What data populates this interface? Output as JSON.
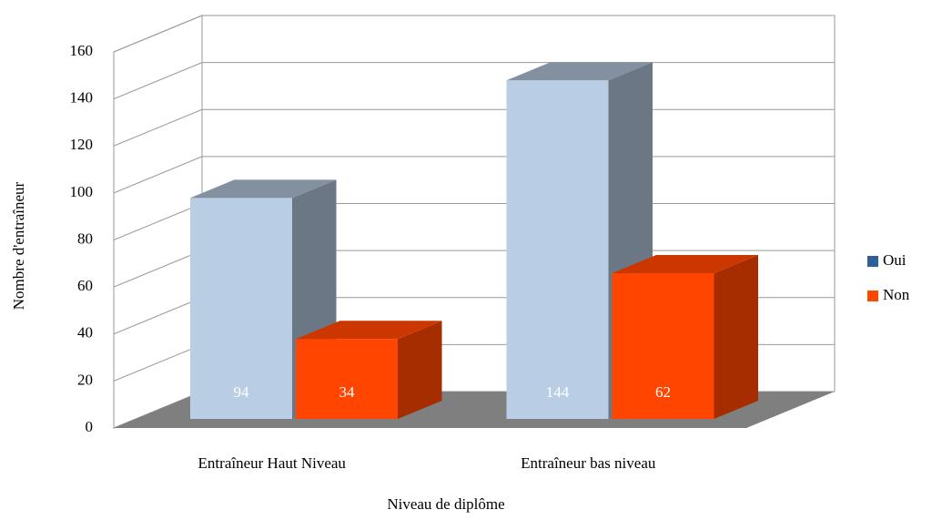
{
  "chart_data": {
    "type": "bar3d",
    "categories": [
      "Entraîneur Haut Niveau",
      "Entraîneur bas niveau"
    ],
    "series": [
      {
        "name": "Oui",
        "color": "#b9cde5",
        "legend_color": "#2d5f9a",
        "values": [
          94,
          144
        ]
      },
      {
        "name": "Non",
        "color": "#ff4500",
        "legend_color": "#ff4500",
        "values": [
          34,
          62
        ]
      }
    ],
    "x_label": "Niveau de diplôme",
    "y_label": "Nombre d'entraîneur",
    "ylim": [
      0,
      160
    ],
    "yticks": [
      0,
      20,
      40,
      60,
      80,
      100,
      120,
      140,
      160
    ],
    "grid": true,
    "legend": "right"
  }
}
